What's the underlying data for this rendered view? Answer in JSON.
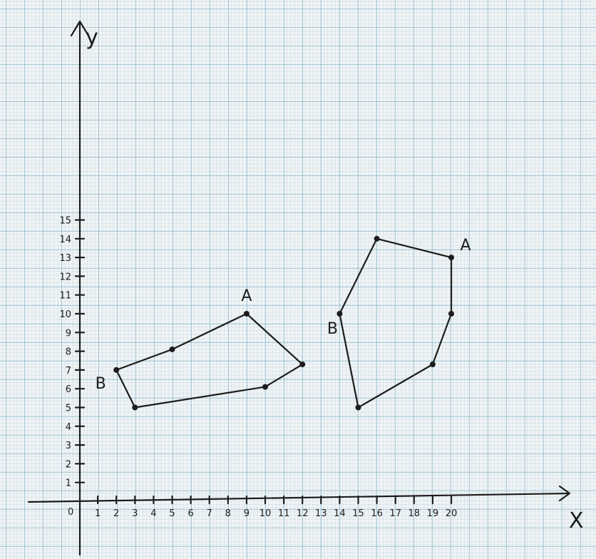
{
  "axes": {
    "x_label": "X",
    "y_label": "y",
    "origin_label": "0",
    "x_ticks": [
      "1",
      "2",
      "3",
      "4",
      "5",
      "6",
      "7",
      "8",
      "9",
      "10",
      "11",
      "12",
      "13",
      "14",
      "15",
      "16",
      "17",
      "18",
      "19",
      "20"
    ],
    "y_ticks": [
      "1",
      "2",
      "3",
      "4",
      "5",
      "6",
      "7",
      "8",
      "9",
      "10",
      "11",
      "12",
      "13",
      "14",
      "15"
    ]
  },
  "shapes": [
    {
      "name": "left-polygon",
      "points": [
        [
          9,
          10
        ],
        [
          12,
          7.3
        ],
        [
          10,
          6.1
        ],
        [
          3,
          5
        ],
        [
          2,
          7
        ],
        [
          5,
          8.1
        ]
      ],
      "labels": [
        {
          "text": "A",
          "near": [
            9,
            10
          ]
        },
        {
          "text": "B",
          "near": [
            2,
            7
          ]
        }
      ]
    },
    {
      "name": "right-polygon",
      "points": [
        [
          16,
          14
        ],
        [
          20,
          13
        ],
        [
          20,
          10
        ],
        [
          19,
          7.3
        ],
        [
          15,
          5
        ],
        [
          14,
          10
        ]
      ],
      "labels": [
        {
          "text": "A",
          "near": [
            20,
            13
          ]
        },
        {
          "text": "B",
          "near": [
            14,
            10
          ]
        }
      ]
    }
  ]
}
